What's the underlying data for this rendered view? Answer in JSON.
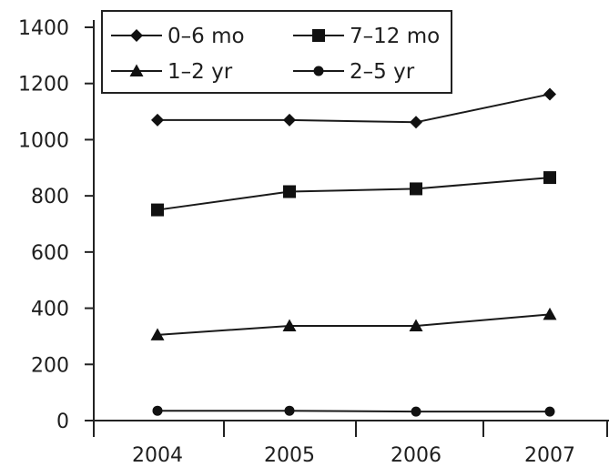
{
  "chart_data": {
    "type": "line",
    "title": "",
    "xlabel": "",
    "ylabel": "",
    "categories": [
      "2004",
      "2005",
      "2006",
      "2007"
    ],
    "ylim": [
      0,
      1400
    ],
    "yticks": [
      0,
      200,
      400,
      600,
      800,
      1000,
      1200,
      1400
    ],
    "grid": false,
    "legend_position": "top-left",
    "series": [
      {
        "name": "0–6 mo",
        "marker": "diamond",
        "values": [
          1070,
          1070,
          1062,
          1162
        ]
      },
      {
        "name": "7–12 mo",
        "marker": "square",
        "values": [
          750,
          815,
          825,
          865
        ]
      },
      {
        "name": "1–2 yr",
        "marker": "triangle",
        "values": [
          305,
          337,
          337,
          378
        ]
      },
      {
        "name": "2–5 yr",
        "marker": "circle",
        "values": [
          35,
          35,
          32,
          32
        ]
      }
    ],
    "legend_order": [
      0,
      2,
      1,
      3
    ],
    "color": "#111111"
  }
}
